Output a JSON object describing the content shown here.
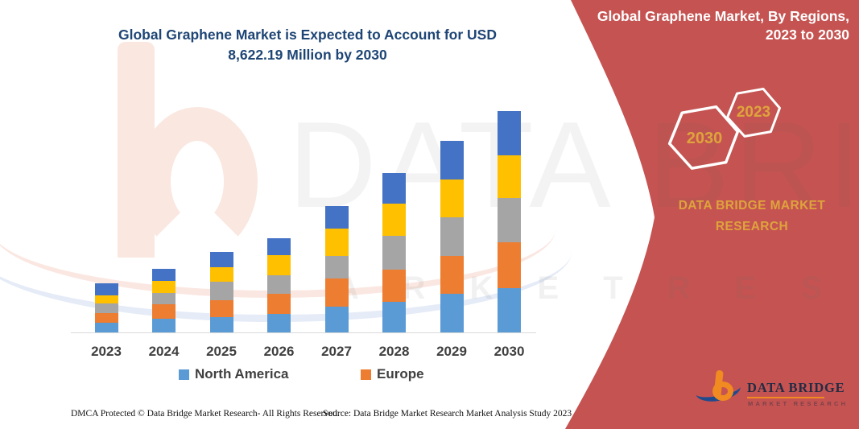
{
  "chart": {
    "title_line1": "Global Graphene Market is Expected to Account for USD",
    "title_line2": "8,622.19 Million by 2030"
  },
  "chart_data": {
    "type": "bar",
    "stacked": true,
    "title": "Global Graphene Market is Expected to Account for USD 8,622.19 Million by 2030",
    "unit": "USD Million",
    "categories": [
      "2023",
      "2024",
      "2025",
      "2026",
      "2027",
      "2028",
      "2029",
      "2030"
    ],
    "series": [
      {
        "name": "North America",
        "color": "#5B9BD5",
        "in_legend": true,
        "values": [
          376,
          533,
          596,
          721,
          1003,
          1191,
          1505,
          1724
        ]
      },
      {
        "name": "Europe",
        "color": "#ED7D31",
        "in_legend": true,
        "values": [
          376,
          564,
          658,
          784,
          1097,
          1254,
          1473,
          1787
        ]
      },
      {
        "name": "unlabeled-gray",
        "color": "#A5A5A5",
        "in_legend": false,
        "values": [
          376,
          439,
          721,
          721,
          878,
          1317,
          1505,
          1724
        ]
      },
      {
        "name": "unlabeled-yellow",
        "color": "#FFC000",
        "in_legend": false,
        "values": [
          313,
          470,
          564,
          784,
          1066,
          1254,
          1473,
          1662
        ]
      },
      {
        "name": "unlabeled-dark-blue",
        "color": "#4472C4",
        "in_legend": false,
        "values": [
          470,
          470,
          596,
          658,
          878,
          1191,
          1505,
          1724
        ]
      }
    ],
    "totals": [
      1911,
      2476,
      3135,
      3668,
      4922,
      6207,
      7461,
      8622
    ],
    "ylim": [
      0,
      8800
    ],
    "grid": false,
    "legend": [
      "North America",
      "Europe"
    ],
    "legend_position": "bottom"
  },
  "sidebar": {
    "panel_title_line1": "Global Graphene Market, By Regions,",
    "panel_title_line2": "2023 to 2030",
    "hexagon_large_year": "2030",
    "hexagon_small_year": "2023",
    "brand_line1": "DATA BRIDGE MARKET",
    "brand_line2": "RESEARCH",
    "logo_name": "DATA BRIDGE",
    "logo_subtext": "MARKET RESEARCH"
  },
  "watermark": {
    "title_text": "DATA BRIDGE",
    "letters_text": "M A R K E T  R E S E A R C H"
  },
  "footer": {
    "left": "DMCA Protected © Data Bridge Market Research-  All Rights Reserved.",
    "right": "Source: Data Bridge Market Research  Market Analysis Study 2023"
  },
  "colors": {
    "panel_red": "#C55351",
    "gold_text": "#DFA33C",
    "title_navy": "#1E4575",
    "axis_gray": "#D9D9D9",
    "label_gray": "#404040",
    "hexagon_stroke": "#FFFFFF"
  }
}
